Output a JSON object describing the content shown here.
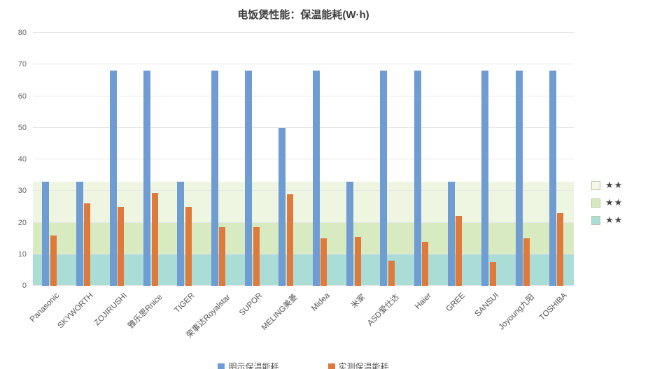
{
  "chart_data": {
    "type": "bar",
    "title": "电饭煲性能：保温能耗(W·h)",
    "categories": [
      "Panasonic",
      "SKYWORTH",
      "ZOJIRUSHI",
      "雅乐思Rnice",
      "TIGER",
      "荣事达Royalstar",
      "SUPOR",
      "MELING美菱",
      "Midea",
      "米家",
      "ASD爱仕达",
      "Haier",
      "GREE",
      "SANSUI",
      "Joyoung九阳",
      "TOSHIBA"
    ],
    "series": [
      {
        "name": "明示保温能耗",
        "color": "#6f9cd3",
        "values": [
          33,
          33,
          68,
          68,
          33,
          68,
          68,
          50,
          68,
          33,
          68,
          68,
          33,
          68,
          68,
          68
        ]
      },
      {
        "name": "实测保温能耗",
        "color": "#df7a3c",
        "values": [
          16,
          26,
          25,
          29.5,
          25,
          18.5,
          18.5,
          29,
          15,
          15.5,
          8,
          14,
          22,
          7.5,
          15,
          23
        ]
      }
    ],
    "ylim": [
      0,
      80
    ],
    "yticks": [
      0,
      10,
      20,
      30,
      40,
      50,
      60,
      70,
      80
    ],
    "grid": "horizontal",
    "legend_position": "bottom",
    "rating_bands": [
      {
        "from": 0,
        "to": 10,
        "color": "#aaddd6",
        "stars": "★★"
      },
      {
        "from": 10,
        "to": 20,
        "color": "#d7eac0",
        "stars": "★★"
      },
      {
        "from": 20,
        "to": 33,
        "color": "#eef5e1",
        "stars": "★★"
      }
    ],
    "rating_legend": [
      {
        "stars": "★★",
        "color": "#f3f8ea"
      },
      {
        "stars": "★★",
        "color": "#d7eac0"
      },
      {
        "stars": "★★",
        "color": "#aaddd6"
      }
    ]
  }
}
